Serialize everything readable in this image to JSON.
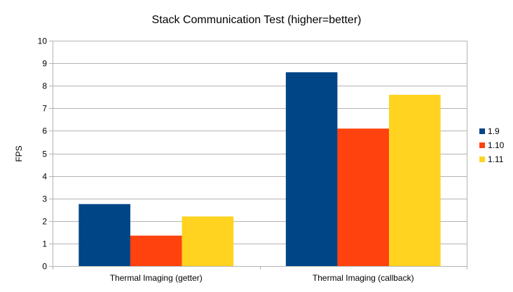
{
  "chart_data": {
    "type": "bar",
    "title": "Stack Communication Test (higher=better)",
    "xlabel": "",
    "ylabel": "FPS",
    "ylim": [
      0,
      10
    ],
    "yticks": [
      "0",
      "1",
      "2",
      "3",
      "4",
      "5",
      "6",
      "7",
      "8",
      "9",
      "10"
    ],
    "categories": [
      "Thermal Imaging (getter)",
      "Thermal Imaging (callback)"
    ],
    "series": [
      {
        "name": "1.9",
        "values": [
          2.75,
          8.6
        ],
        "color": "#004586"
      },
      {
        "name": "1.10",
        "values": [
          1.35,
          6.1
        ],
        "color": "#ff420e"
      },
      {
        "name": "1.11",
        "values": [
          2.2,
          7.6
        ],
        "color": "#ffd320"
      }
    ],
    "grid": true,
    "legend_position": "right"
  }
}
